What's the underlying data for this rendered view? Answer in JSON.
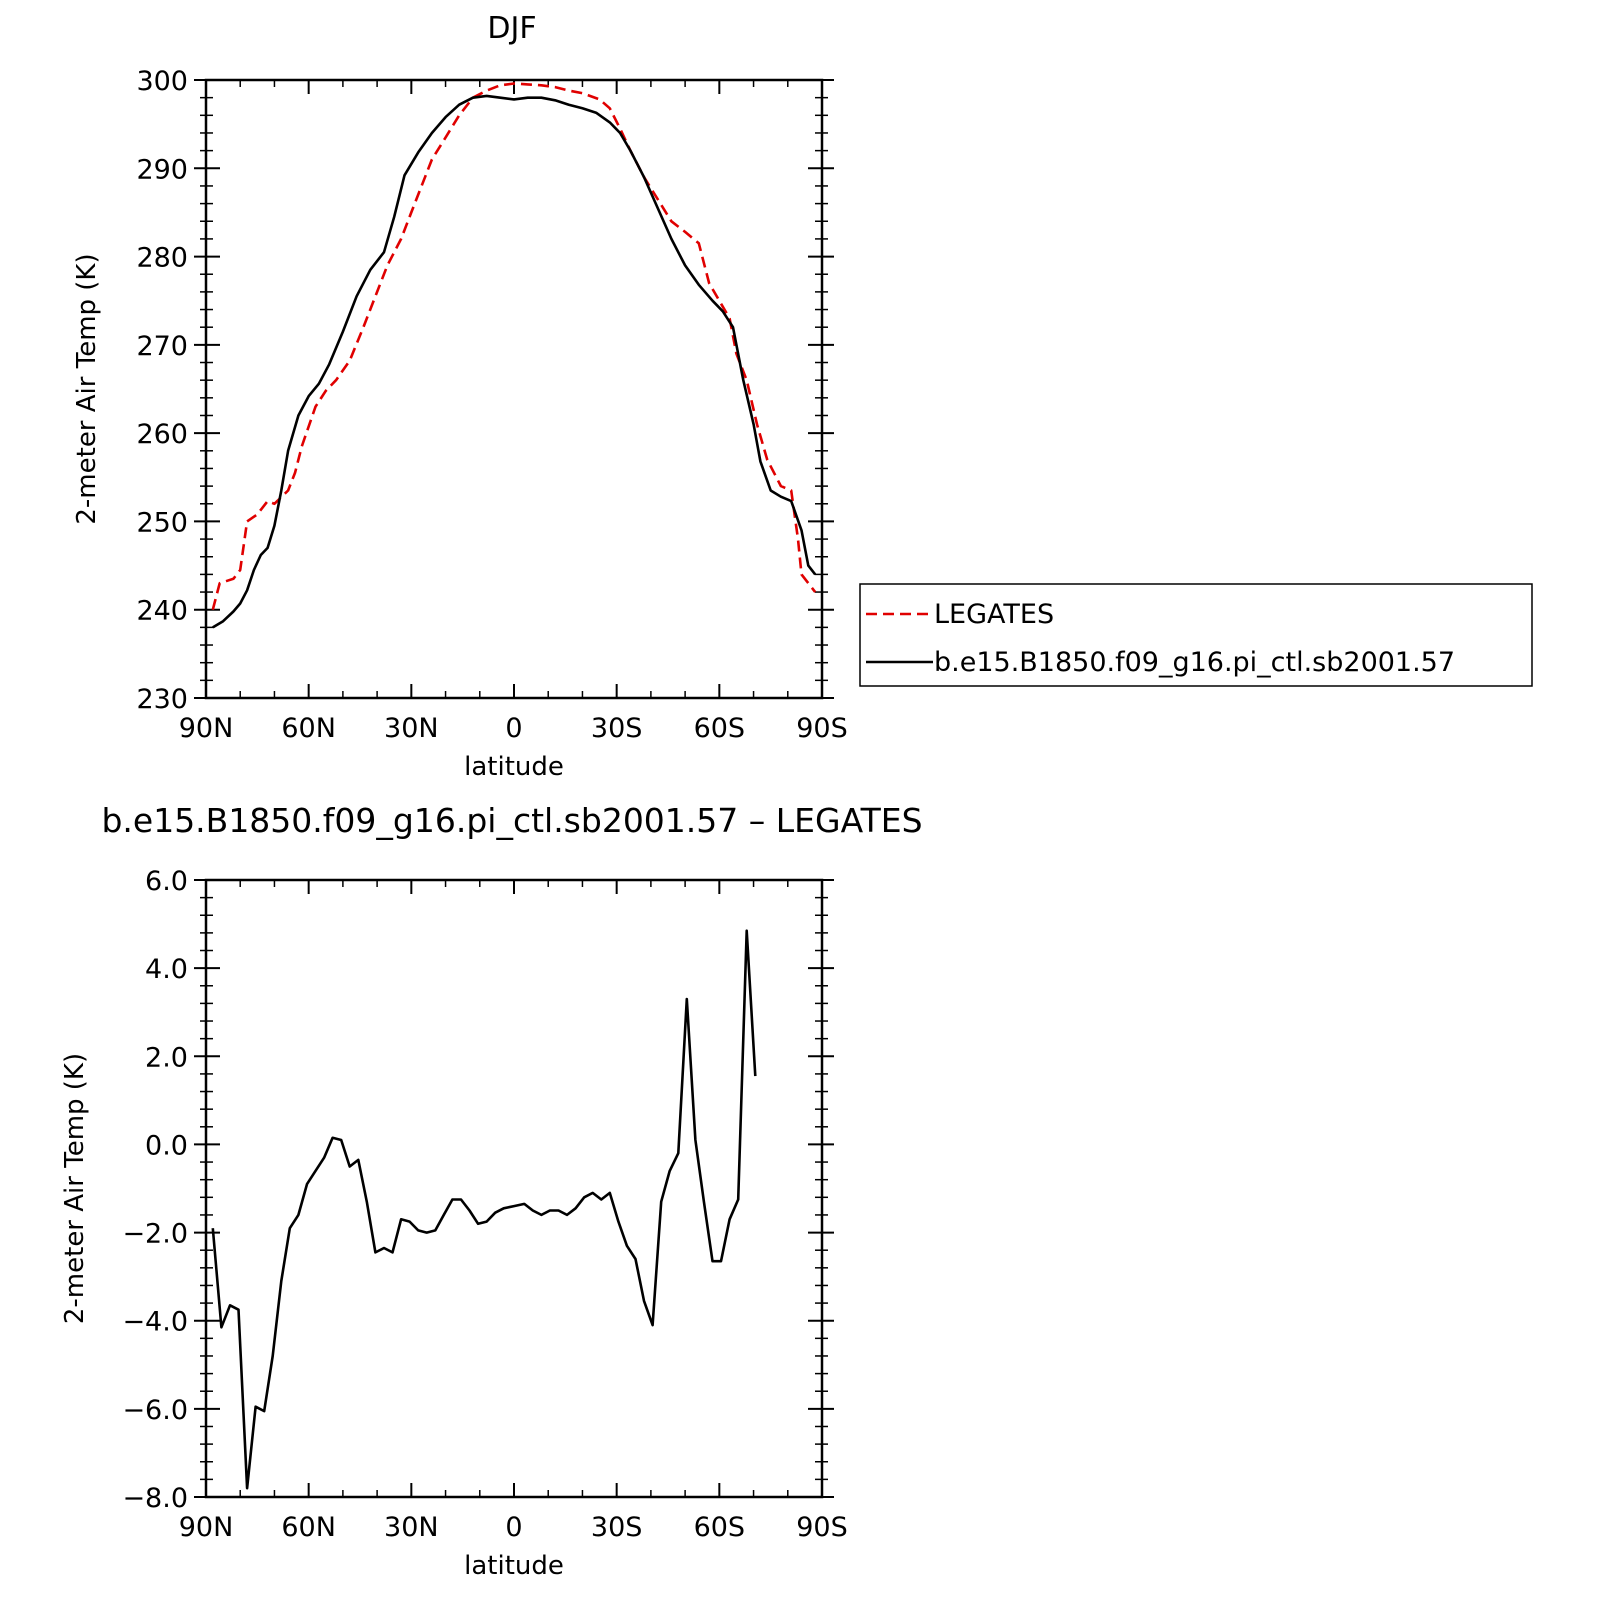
{
  "colors": {
    "obs": "#e00000",
    "model": "#000000"
  },
  "chart_data": [
    {
      "type": "line",
      "title": "DJF",
      "xlabel": "latitude",
      "ylabel": "2-meter Air Temp (K)",
      "xlim": [
        90,
        -90
      ],
      "ylim": [
        230,
        300
      ],
      "xticks": [
        {
          "v": 90,
          "label": "90N"
        },
        {
          "v": 60,
          "label": "60N"
        },
        {
          "v": 30,
          "label": "30N"
        },
        {
          "v": 0,
          "label": "0"
        },
        {
          "v": -30,
          "label": "30S"
        },
        {
          "v": -60,
          "label": "60S"
        },
        {
          "v": -90,
          "label": "90S"
        }
      ],
      "yticks": [
        {
          "v": 300,
          "label": "300"
        },
        {
          "v": 290,
          "label": "290"
        },
        {
          "v": 280,
          "label": "280"
        },
        {
          "v": 270,
          "label": "270"
        },
        {
          "v": 260,
          "label": "260"
        },
        {
          "v": 250,
          "label": "250"
        },
        {
          "v": 240,
          "label": "240"
        },
        {
          "v": 230,
          "label": "230"
        }
      ],
      "legend": {
        "position": "right"
      },
      "series": [
        {
          "name": "LEGATES",
          "style": "dashed",
          "color": "#e00000",
          "points": [
            [
              88,
              240
            ],
            [
              86,
              243
            ],
            [
              82,
              243.5
            ],
            [
              80,
              244.5
            ],
            [
              78,
              250
            ],
            [
              75,
              250.8
            ],
            [
              72,
              252.3
            ],
            [
              70,
              252
            ],
            [
              66,
              253.5
            ],
            [
              64,
              255.5
            ],
            [
              62,
              258.5
            ],
            [
              58,
              263
            ],
            [
              55,
              264.8
            ],
            [
              52,
              266
            ],
            [
              48,
              268.2
            ],
            [
              44,
              272
            ],
            [
              40,
              276
            ],
            [
              37,
              279
            ],
            [
              33,
              282
            ],
            [
              30,
              285
            ],
            [
              27,
              288
            ],
            [
              24,
              291
            ],
            [
              20,
              293.5
            ],
            [
              16,
              296
            ],
            [
              12,
              298
            ],
            [
              8,
              298.8
            ],
            [
              4,
              299.4
            ],
            [
              0,
              299.6
            ],
            [
              -4,
              299.5
            ],
            [
              -8,
              299.4
            ],
            [
              -12,
              299.2
            ],
            [
              -16,
              298.8
            ],
            [
              -20,
              298.5
            ],
            [
              -25,
              297.8
            ],
            [
              -28,
              296.8
            ],
            [
              -31,
              294.5
            ],
            [
              -34,
              292
            ],
            [
              -38,
              289
            ],
            [
              -42,
              286.5
            ],
            [
              -46,
              284
            ],
            [
              -50,
              282.8
            ],
            [
              -54,
              281.5
            ],
            [
              -57,
              277
            ],
            [
              -60,
              275
            ],
            [
              -63,
              273
            ],
            [
              -65,
              269
            ],
            [
              -68,
              266
            ],
            [
              -71,
              261
            ],
            [
              -74,
              257
            ],
            [
              -78,
              254
            ],
            [
              -81,
              253.5
            ],
            [
              -83,
              248
            ],
            [
              -84,
              244
            ],
            [
              -86,
              243
            ],
            [
              -88,
              242
            ]
          ]
        },
        {
          "name": "b.e15.B1850.f09_g16.pi_ctl.sb2001.57",
          "style": "solid",
          "color": "#000000",
          "points": [
            [
              88,
              238
            ],
            [
              85,
              238.7
            ],
            [
              82,
              239.8
            ],
            [
              80,
              240.7
            ],
            [
              78,
              242.2
            ],
            [
              76,
              244.5
            ],
            [
              74,
              246.2
            ],
            [
              72,
              247
            ],
            [
              70,
              249.5
            ],
            [
              68,
              253.5
            ],
            [
              66,
              258
            ],
            [
              63,
              262
            ],
            [
              60,
              264.2
            ],
            [
              57,
              265.6
            ],
            [
              54,
              267.8
            ],
            [
              50,
              271.5
            ],
            [
              46,
              275.5
            ],
            [
              42,
              278.5
            ],
            [
              38,
              280.5
            ],
            [
              35,
              284.5
            ],
            [
              32,
              289.2
            ],
            [
              28,
              291.8
            ],
            [
              24,
              294
            ],
            [
              20,
              295.8
            ],
            [
              16,
              297.2
            ],
            [
              12,
              298
            ],
            [
              8,
              298.2
            ],
            [
              4,
              298
            ],
            [
              0,
              297.8
            ],
            [
              -4,
              298
            ],
            [
              -8,
              298
            ],
            [
              -12,
              297.7
            ],
            [
              -16,
              297.2
            ],
            [
              -20,
              296.8
            ],
            [
              -24,
              296.3
            ],
            [
              -28,
              295.2
            ],
            [
              -31,
              294
            ],
            [
              -34,
              292
            ],
            [
              -38,
              289
            ],
            [
              -42,
              285.5
            ],
            [
              -46,
              282
            ],
            [
              -50,
              279
            ],
            [
              -54,
              276.8
            ],
            [
              -58,
              275
            ],
            [
              -61,
              273.8
            ],
            [
              -64,
              272
            ],
            [
              -67,
              266
            ],
            [
              -70,
              261
            ],
            [
              -72,
              256.8
            ],
            [
              -75,
              253.5
            ],
            [
              -78,
              252.8
            ],
            [
              -81,
              252.3
            ],
            [
              -84,
              249
            ],
            [
              -86,
              245
            ],
            [
              -88,
              244
            ]
          ]
        }
      ]
    },
    {
      "type": "line",
      "title": "b.e15.B1850.f09_g16.pi_ctl.sb2001.57 – LEGATES",
      "xlabel": "latitude",
      "ylabel": "2-meter Air Temp (K)",
      "xlim": [
        90,
        -90
      ],
      "ylim": [
        -8,
        6
      ],
      "xticks": [
        {
          "v": 90,
          "label": "90N"
        },
        {
          "v": 60,
          "label": "60N"
        },
        {
          "v": 30,
          "label": "30N"
        },
        {
          "v": 0,
          "label": "0"
        },
        {
          "v": -30,
          "label": "30S"
        },
        {
          "v": -60,
          "label": "60S"
        },
        {
          "v": -90,
          "label": "90S"
        }
      ],
      "yticks": [
        {
          "v": 6,
          "label": "6.0"
        },
        {
          "v": 4,
          "label": "4.0"
        },
        {
          "v": 2,
          "label": "2.0"
        },
        {
          "v": 0,
          "label": "0.0"
        },
        {
          "v": -2,
          "label": "−2.0"
        },
        {
          "v": -4,
          "label": "−4.0"
        },
        {
          "v": -6,
          "label": "−6.0"
        },
        {
          "v": -8,
          "label": "−8.0"
        }
      ],
      "series": [
        {
          "style": "solid",
          "color": "#000000",
          "points": [
            [
              88,
              -1.9
            ],
            [
              85.5,
              -4.15
            ],
            [
              83,
              -3.65
            ],
            [
              80.5,
              -3.75
            ],
            [
              78,
              -7.8
            ],
            [
              75.5,
              -5.95
            ],
            [
              73,
              -6.05
            ],
            [
              70.5,
              -4.8
            ],
            [
              68,
              -3.1
            ],
            [
              65.5,
              -1.9
            ],
            [
              63,
              -1.6
            ],
            [
              60.5,
              -0.9
            ],
            [
              58,
              -0.6
            ],
            [
              55.5,
              -0.3
            ],
            [
              53,
              0.15
            ],
            [
              50.5,
              0.1
            ],
            [
              48,
              -0.5
            ],
            [
              45.5,
              -0.35
            ],
            [
              43,
              -1.3
            ],
            [
              40.5,
              -2.45
            ],
            [
              38,
              -2.35
            ],
            [
              35.5,
              -2.45
            ],
            [
              33,
              -1.7
            ],
            [
              30.5,
              -1.75
            ],
            [
              28,
              -1.95
            ],
            [
              25.5,
              -2.0
            ],
            [
              23,
              -1.95
            ],
            [
              20.5,
              -1.6
            ],
            [
              18,
              -1.25
            ],
            [
              15.5,
              -1.25
            ],
            [
              13,
              -1.5
            ],
            [
              10.5,
              -1.8
            ],
            [
              8,
              -1.75
            ],
            [
              5.5,
              -1.55
            ],
            [
              3,
              -1.45
            ],
            [
              0,
              -1.4
            ],
            [
              -3,
              -1.35
            ],
            [
              -5.5,
              -1.5
            ],
            [
              -8,
              -1.6
            ],
            [
              -10.5,
              -1.5
            ],
            [
              -13,
              -1.5
            ],
            [
              -15.5,
              -1.6
            ],
            [
              -18,
              -1.45
            ],
            [
              -20.5,
              -1.2
            ],
            [
              -23,
              -1.1
            ],
            [
              -25.5,
              -1.25
            ],
            [
              -28,
              -1.1
            ],
            [
              -30.5,
              -1.75
            ],
            [
              -33,
              -2.3
            ],
            [
              -35.5,
              -2.6
            ],
            [
              -38,
              -3.55
            ],
            [
              -40.5,
              -4.1
            ],
            [
              -43,
              -1.3
            ],
            [
              -45.5,
              -0.6
            ],
            [
              -48,
              -0.2
            ],
            [
              -50.5,
              3.3
            ],
            [
              -53,
              0.1
            ],
            [
              -55.5,
              -1.3
            ],
            [
              -58,
              -2.65
            ],
            [
              -60.5,
              -2.65
            ],
            [
              -63,
              -1.7
            ],
            [
              -65.5,
              -1.25
            ],
            [
              -68,
              4.85
            ],
            [
              -70.5,
              1.55
            ]
          ]
        }
      ]
    }
  ]
}
